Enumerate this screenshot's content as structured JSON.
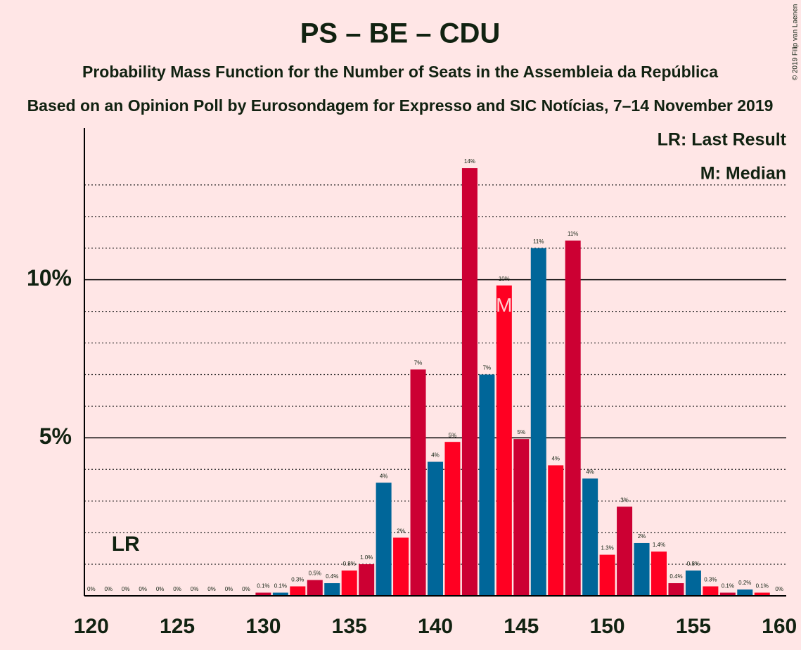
{
  "chart_data": {
    "type": "bar",
    "title": "PS – BE – CDU",
    "subtitle": "Probability Mass Function for the Number of Seats in the Assembleia da República",
    "subtitle2": "Based on an Opinion Poll by Eurosondagem for Expresso and SIC Notícias, 7–14 November 2019",
    "copyright": "© 2019 Filip van Laenen",
    "x": [
      120,
      121,
      122,
      123,
      124,
      125,
      126,
      127,
      128,
      129,
      130,
      131,
      132,
      133,
      134,
      135,
      136,
      137,
      138,
      139,
      140,
      141,
      142,
      143,
      144,
      145,
      146,
      147,
      148,
      149,
      150,
      151,
      152,
      153,
      154,
      155,
      156,
      157,
      158,
      159,
      160
    ],
    "values": [
      0,
      0,
      0,
      0,
      0,
      0,
      0,
      0,
      0,
      0,
      0.1,
      0.1,
      0.3,
      0.5,
      0.4,
      0.8,
      1.0,
      3.58,
      1.84,
      7.16,
      4.24,
      4.87,
      13.53,
      7.0,
      9.82,
      4.96,
      11.0,
      4.13,
      11.24,
      3.71,
      1.3,
      2.82,
      1.67,
      1.4,
      0.4,
      0.8,
      0.3,
      0.1,
      0.2,
      0.1,
      0
    ],
    "value_labels": [
      "0%",
      "0%",
      "0%",
      "0%",
      "0%",
      "0%",
      "0%",
      "0%",
      "0%",
      "0%",
      "0.1%",
      "0.1%",
      "0.3%",
      "0.5%",
      "0.4%",
      "0.8%",
      "1.0%",
      "4%",
      "2%",
      "7%",
      "4%",
      "5%",
      "14%",
      "7%",
      "10%",
      "5%",
      "11%",
      "4%",
      "11%",
      "4%",
      "1.3%",
      "3%",
      "2%",
      "1.4%",
      "0.4%",
      "0.8%",
      "0.3%",
      "0.1%",
      "0.2%",
      "0.1%",
      "0%"
    ],
    "colors": [
      "#ff0022",
      "#cc0033",
      "#006699"
    ],
    "xlim": [
      119.6,
      160.4
    ],
    "xticks": [
      120,
      125,
      130,
      135,
      140,
      145,
      150,
      155,
      160
    ],
    "ylim": [
      0,
      14.8
    ],
    "yticks": [
      {
        "value": 5,
        "label": "5%"
      },
      {
        "value": 10,
        "label": "10%"
      }
    ],
    "minor_yticks": [
      1,
      2,
      3,
      4,
      6,
      7,
      8,
      9,
      11,
      12,
      13
    ],
    "grid": true,
    "last_result": {
      "x": 122,
      "label": "LR"
    },
    "median": {
      "x": 144,
      "label": "M"
    },
    "legend": [
      "LR: Last Result",
      "M: Median"
    ]
  }
}
